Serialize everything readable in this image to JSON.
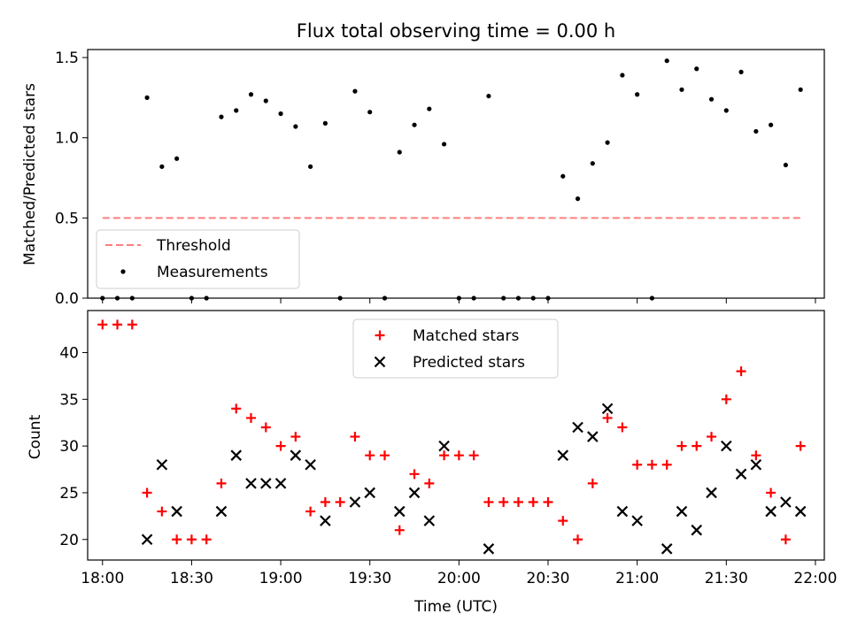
{
  "chart_data": [
    {
      "type": "scatter",
      "title": "Flux total observing time = 0.00 h",
      "xlabel": "",
      "ylabel": "Matched/Predicted stars",
      "ylim": [
        0,
        1.55
      ],
      "yticks": [
        "0.0",
        "0.5",
        "1.0",
        "1.5"
      ],
      "legend_position": "lower-left",
      "threshold": {
        "name": "Threshold",
        "value": 0.5,
        "color": "#ff7f7f",
        "style": "dashed"
      },
      "series": [
        {
          "name": "Measurements",
          "color": "#000000",
          "marker": "dot",
          "points": [
            [
              "18:00",
              0.0
            ],
            [
              "18:05",
              0.0
            ],
            [
              "18:10",
              0.0
            ],
            [
              "18:15",
              1.25
            ],
            [
              "18:20",
              0.82
            ],
            [
              "18:25",
              0.87
            ],
            [
              "18:30",
              0.0
            ],
            [
              "18:35",
              0.0
            ],
            [
              "18:40",
              1.13
            ],
            [
              "18:45",
              1.17
            ],
            [
              "18:50",
              1.27
            ],
            [
              "18:55",
              1.23
            ],
            [
              "19:00",
              1.15
            ],
            [
              "19:05",
              1.07
            ],
            [
              "19:10",
              0.82
            ],
            [
              "19:15",
              1.09
            ],
            [
              "19:20",
              0.0
            ],
            [
              "19:25",
              1.29
            ],
            [
              "19:30",
              1.16
            ],
            [
              "19:35",
              0.0
            ],
            [
              "19:40",
              0.91
            ],
            [
              "19:45",
              1.08
            ],
            [
              "19:50",
              1.18
            ],
            [
              "19:55",
              0.96
            ],
            [
              "20:00",
              0.0
            ],
            [
              "20:05",
              0.0
            ],
            [
              "20:10",
              1.26
            ],
            [
              "20:15",
              0.0
            ],
            [
              "20:20",
              0.0
            ],
            [
              "20:25",
              0.0
            ],
            [
              "20:30",
              0.0
            ],
            [
              "20:35",
              0.76
            ],
            [
              "20:40",
              0.62
            ],
            [
              "20:45",
              0.84
            ],
            [
              "20:50",
              0.97
            ],
            [
              "20:55",
              1.39
            ],
            [
              "21:00",
              1.27
            ],
            [
              "21:05",
              0.0
            ],
            [
              "21:10",
              1.48
            ],
            [
              "21:15",
              1.3
            ],
            [
              "21:20",
              1.43
            ],
            [
              "21:25",
              1.24
            ],
            [
              "21:30",
              1.17
            ],
            [
              "21:35",
              1.41
            ],
            [
              "21:40",
              1.04
            ],
            [
              "21:45",
              1.08
            ],
            [
              "21:50",
              0.83
            ],
            [
              "21:55",
              1.3
            ]
          ]
        }
      ]
    },
    {
      "type": "scatter",
      "title": "",
      "xlabel": "Time (UTC)",
      "ylabel": "Count",
      "ylim": [
        17.8,
        44.5
      ],
      "yticks": [
        "20",
        "25",
        "30",
        "35",
        "40"
      ],
      "xlim": [
        "17:55",
        "22:03"
      ],
      "xticks": [
        "18:00",
        "18:30",
        "19:00",
        "19:30",
        "20:00",
        "20:30",
        "21:00",
        "21:30",
        "22:00"
      ],
      "legend_position": "upper-center",
      "series": [
        {
          "name": "Matched stars",
          "color": "#ff0000",
          "marker": "plus",
          "points": [
            [
              "18:00",
              43
            ],
            [
              "18:05",
              43
            ],
            [
              "18:10",
              43
            ],
            [
              "18:15",
              25
            ],
            [
              "18:20",
              23
            ],
            [
              "18:25",
              20
            ],
            [
              "18:30",
              20
            ],
            [
              "18:35",
              20
            ],
            [
              "18:40",
              26
            ],
            [
              "18:45",
              34
            ],
            [
              "18:50",
              33
            ],
            [
              "18:55",
              32
            ],
            [
              "19:00",
              30
            ],
            [
              "19:05",
              31
            ],
            [
              "19:10",
              23
            ],
            [
              "19:15",
              24
            ],
            [
              "19:20",
              24
            ],
            [
              "19:25",
              31
            ],
            [
              "19:30",
              29
            ],
            [
              "19:35",
              29
            ],
            [
              "19:40",
              21
            ],
            [
              "19:45",
              27
            ],
            [
              "19:50",
              26
            ],
            [
              "19:55",
              29
            ],
            [
              "20:00",
              29
            ],
            [
              "20:05",
              29
            ],
            [
              "20:10",
              24
            ],
            [
              "20:15",
              24
            ],
            [
              "20:20",
              24
            ],
            [
              "20:25",
              24
            ],
            [
              "20:30",
              24
            ],
            [
              "20:35",
              22
            ],
            [
              "20:40",
              20
            ],
            [
              "20:45",
              26
            ],
            [
              "20:50",
              33
            ],
            [
              "20:55",
              32
            ],
            [
              "21:00",
              28
            ],
            [
              "21:05",
              28
            ],
            [
              "21:10",
              28
            ],
            [
              "21:15",
              30
            ],
            [
              "21:20",
              30
            ],
            [
              "21:25",
              31
            ],
            [
              "21:30",
              35
            ],
            [
              "21:35",
              38
            ],
            [
              "21:40",
              29
            ],
            [
              "21:45",
              25
            ],
            [
              "21:50",
              20
            ],
            [
              "21:55",
              30
            ]
          ]
        },
        {
          "name": "Predicted stars",
          "color": "#000000",
          "marker": "x",
          "points": [
            [
              "18:15",
              20
            ],
            [
              "18:20",
              28
            ],
            [
              "18:25",
              23
            ],
            [
              "18:40",
              23
            ],
            [
              "18:45",
              29
            ],
            [
              "18:50",
              26
            ],
            [
              "18:55",
              26
            ],
            [
              "19:00",
              26
            ],
            [
              "19:05",
              29
            ],
            [
              "19:10",
              28
            ],
            [
              "19:15",
              22
            ],
            [
              "19:25",
              24
            ],
            [
              "19:30",
              25
            ],
            [
              "19:40",
              23
            ],
            [
              "19:45",
              25
            ],
            [
              "19:50",
              22
            ],
            [
              "19:55",
              30
            ],
            [
              "20:10",
              19
            ],
            [
              "20:35",
              29
            ],
            [
              "20:40",
              32
            ],
            [
              "20:45",
              31
            ],
            [
              "20:50",
              34
            ],
            [
              "20:55",
              23
            ],
            [
              "21:00",
              22
            ],
            [
              "21:10",
              19
            ],
            [
              "21:15",
              23
            ],
            [
              "21:20",
              21
            ],
            [
              "21:25",
              25
            ],
            [
              "21:30",
              30
            ],
            [
              "21:35",
              27
            ],
            [
              "21:40",
              28
            ],
            [
              "21:45",
              23
            ],
            [
              "21:50",
              24
            ],
            [
              "21:55",
              23
            ]
          ]
        }
      ]
    }
  ]
}
